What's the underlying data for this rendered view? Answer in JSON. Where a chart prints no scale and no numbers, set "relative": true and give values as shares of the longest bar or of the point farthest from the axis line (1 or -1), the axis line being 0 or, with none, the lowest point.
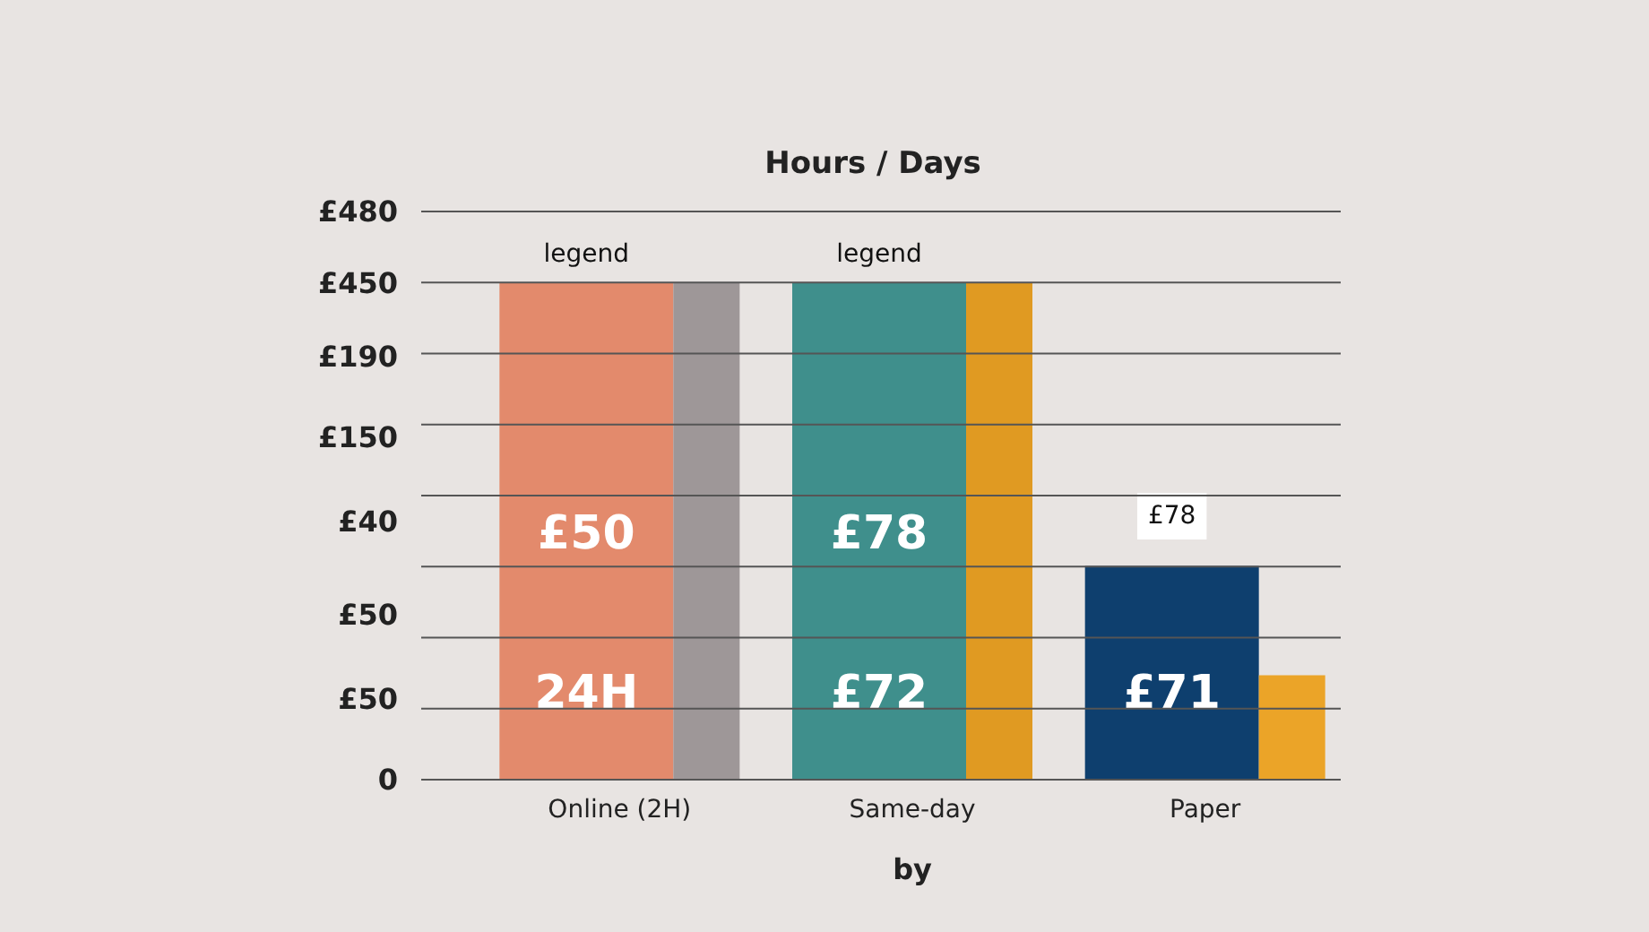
{
  "chart_data": {
    "type": "bar",
    "title": "Hours / Days",
    "xlabel": "by",
    "relative": true,
    "categories": [
      "Online (2H)",
      "Same-day",
      "Paper"
    ],
    "series": [
      {
        "colors": [
          "#e38a6c",
          "#3f8f8c",
          "#0e3f6e"
        ],
        "values": [
          1,
          1,
          0.43
        ]
      },
      {
        "colors": [
          "#9e9798",
          "#e09a22",
          "#eba428"
        ],
        "values": [
          1,
          1,
          0.21
        ]
      }
    ],
    "annotations": [
      "0",
      "£50",
      "£50",
      "£40",
      "£150",
      "£190",
      "£450",
      "£480",
      "legend",
      "legend",
      "£50",
      "24H",
      "£78",
      "£72",
      "£78",
      "£71"
    ]
  }
}
